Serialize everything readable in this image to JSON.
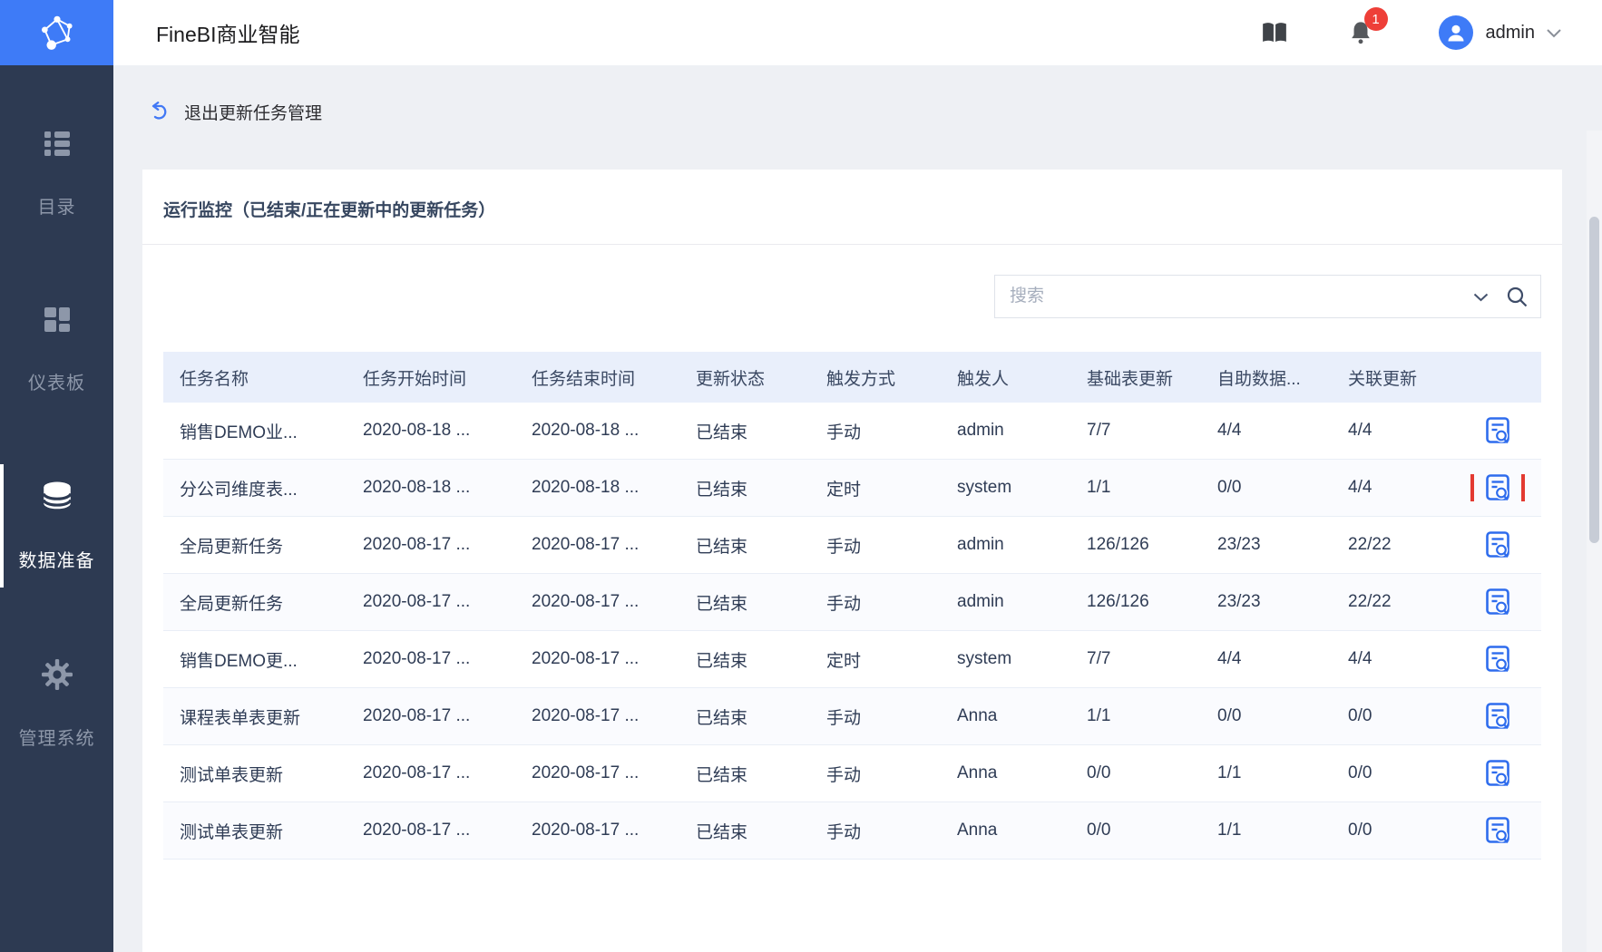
{
  "app": {
    "title": "FineBI商业智能"
  },
  "topbar": {
    "user_name": "admin",
    "notification_count": "1",
    "icons": [
      "help-book-icon",
      "notification-bell-icon",
      "user-avatar-icon",
      "chevron-down-icon"
    ]
  },
  "breadcrumb": {
    "back_label": "退出更新任务管理",
    "icon": "undo-arrow-icon"
  },
  "sidebar": {
    "items": [
      {
        "label": "目录",
        "icon": "catalog-list-icon",
        "active": false
      },
      {
        "label": "仪表板",
        "icon": "dashboard-grid-icon",
        "active": false
      },
      {
        "label": "数据准备",
        "icon": "database-icon",
        "active": true
      },
      {
        "label": "管理系统",
        "icon": "gear-icon",
        "active": false
      }
    ]
  },
  "main": {
    "section_title": "运行监控（已结束/正在更新中的更新任务）",
    "search": {
      "placeholder": "搜索",
      "icons": [
        "chevron-down-icon",
        "search-icon"
      ]
    },
    "table": {
      "columns": [
        "任务名称",
        "任务开始时间",
        "任务结束时间",
        "更新状态",
        "触发方式",
        "触发人",
        "基础表更新",
        "自助数据...",
        "关联更新"
      ],
      "rows": [
        [
          "销售DEMO业...",
          "2020-08-18 ...",
          "2020-08-18 ...",
          "已结束",
          "手动",
          "admin",
          "7/7",
          "4/4",
          "4/4"
        ],
        [
          "分公司维度表...",
          "2020-08-18 ...",
          "2020-08-18 ...",
          "已结束",
          "定时",
          "system",
          "1/1",
          "0/0",
          "4/4"
        ],
        [
          "全局更新任务",
          "2020-08-17 ...",
          "2020-08-17 ...",
          "已结束",
          "手动",
          "admin",
          "126/126",
          "23/23",
          "22/22"
        ],
        [
          "全局更新任务",
          "2020-08-17 ...",
          "2020-08-17 ...",
          "已结束",
          "手动",
          "admin",
          "126/126",
          "23/23",
          "22/22"
        ],
        [
          "销售DEMO更...",
          "2020-08-17 ...",
          "2020-08-17 ...",
          "已结束",
          "定时",
          "system",
          "7/7",
          "4/4",
          "4/4"
        ],
        [
          "课程表单表更新",
          "2020-08-17 ...",
          "2020-08-17 ...",
          "已结束",
          "手动",
          "Anna",
          "1/1",
          "0/0",
          "0/0"
        ],
        [
          "测试单表更新",
          "2020-08-17 ...",
          "2020-08-17 ...",
          "已结束",
          "手动",
          "Anna",
          "0/0",
          "1/1",
          "0/0"
        ],
        [
          "测试单表更新",
          "2020-08-17 ...",
          "2020-08-17 ...",
          "已结束",
          "手动",
          "Anna",
          "0/0",
          "1/1",
          "0/0"
        ]
      ],
      "action_icon": "view-detail-icon",
      "highlighted_row_index": 1
    }
  },
  "colors": {
    "accent_blue": "#3e7bf7",
    "action_icon_blue": "#2e6ced",
    "highlight_red": "#e33a31",
    "sidebar_bg": "#2d3a52",
    "table_header_bg": "#e9effb",
    "badge_red": "#ee3f38"
  }
}
